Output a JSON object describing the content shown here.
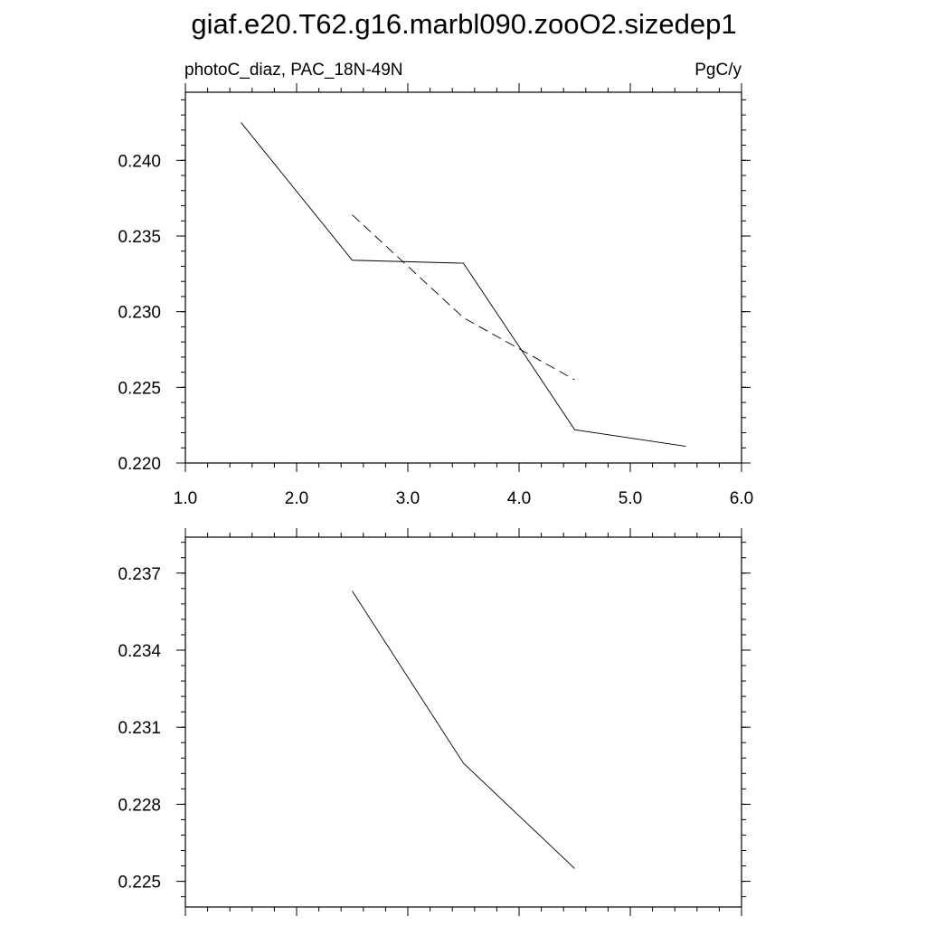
{
  "title": "giaf.e20.T62.g16.marbl090.zooO2.sizedep1",
  "chart_data": [
    {
      "type": "line",
      "left_label": "photoC_diaz, PAC_18N-49N",
      "right_label": "PgC/y",
      "xlim": [
        1.0,
        6.0
      ],
      "ylim": [
        0.22,
        0.2445
      ],
      "x_ticks": [
        1.0,
        2.0,
        3.0,
        4.0,
        5.0,
        6.0
      ],
      "x_tick_labels": [
        "1.0",
        "2.0",
        "3.0",
        "4.0",
        "5.0",
        "6.0"
      ],
      "y_ticks": [
        0.22,
        0.225,
        0.23,
        0.235,
        0.24
      ],
      "y_tick_labels": [
        "0.220",
        "0.225",
        "0.230",
        "0.235",
        "0.240"
      ],
      "grid": false,
      "series": [
        {
          "style": "solid",
          "color": "#000000",
          "x": [
            1.5,
            2.5,
            3.5,
            4.5,
            5.5
          ],
          "y": [
            0.2425,
            0.2334,
            0.2332,
            0.2222,
            0.2211
          ]
        },
        {
          "style": "dashed",
          "color": "#000000",
          "x": [
            2.5,
            3.5,
            4.5
          ],
          "y": [
            0.2364,
            0.2296,
            0.2255
          ]
        }
      ]
    },
    {
      "type": "line",
      "xlim": [
        1.0,
        6.0
      ],
      "ylim": [
        0.224,
        0.2384
      ],
      "x_ticks": [
        1.0,
        2.0,
        3.0,
        4.0,
        5.0,
        6.0
      ],
      "y_ticks": [
        0.225,
        0.228,
        0.231,
        0.234,
        0.237
      ],
      "y_tick_labels": [
        "0.225",
        "0.228",
        "0.231",
        "0.234",
        "0.237"
      ],
      "grid": false,
      "series": [
        {
          "style": "solid",
          "color": "#000000",
          "x": [
            2.5,
            3.5,
            4.5
          ],
          "y": [
            0.2363,
            0.2296,
            0.2255
          ]
        }
      ]
    }
  ]
}
